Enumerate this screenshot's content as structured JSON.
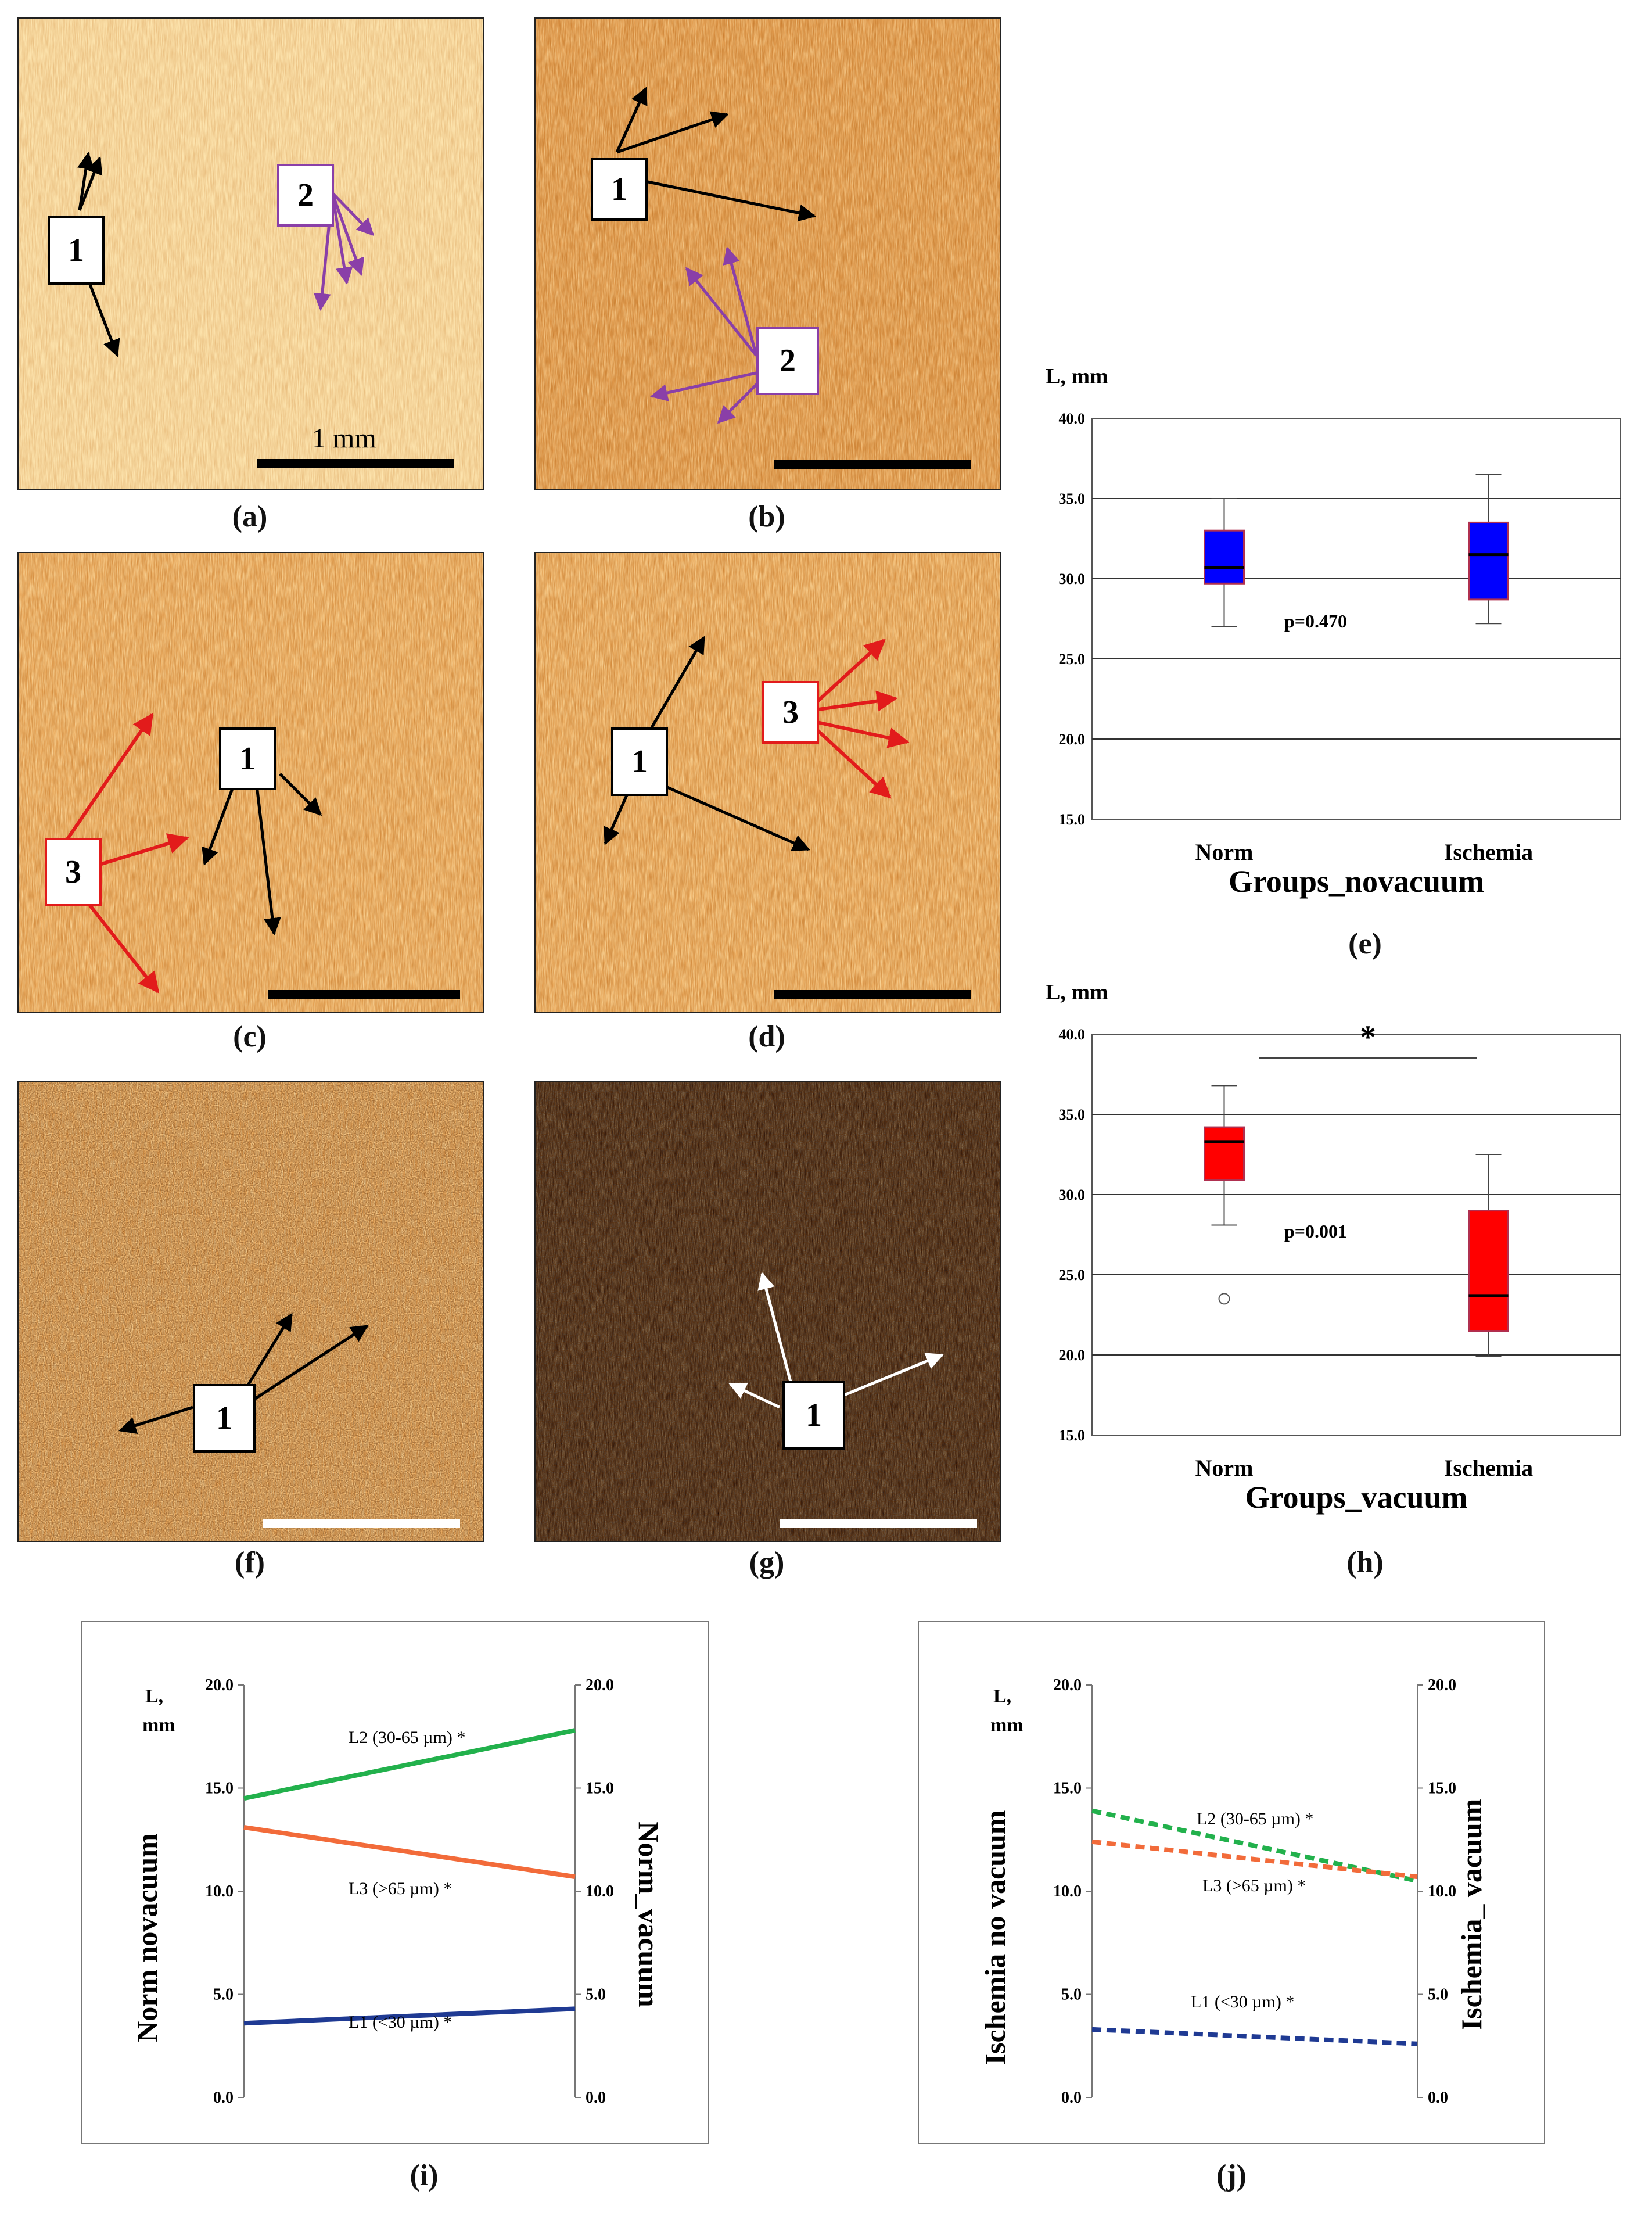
{
  "panels": {
    "a": {
      "caption": "(a)",
      "labels": [
        "1",
        "2"
      ],
      "scale_text": "1 mm"
    },
    "b": {
      "caption": "(b)",
      "labels": [
        "1",
        "2"
      ]
    },
    "c": {
      "caption": "(c)",
      "labels": [
        "1",
        "3"
      ]
    },
    "d": {
      "caption": "(d)",
      "labels": [
        "1",
        "3"
      ]
    },
    "e": {
      "caption": "(e)"
    },
    "f": {
      "caption": "(f)",
      "labels": [
        "1"
      ]
    },
    "g": {
      "caption": "(g)",
      "labels": [
        "1"
      ]
    },
    "h": {
      "caption": "(h)"
    },
    "i": {
      "caption": "(i)"
    },
    "j": {
      "caption": "(j)"
    }
  },
  "colors": {
    "box_blue": "#0000ff",
    "box_red": "#ff0000",
    "green": "#22b14c",
    "orange": "#f26b3a",
    "navy": "#1f3a93",
    "purple": "#8a3fa8",
    "red_arrow": "#e21b1b"
  },
  "chart_data": [
    {
      "id": "e",
      "type": "box",
      "ylabel": "L, mm",
      "xlabel": "Groups_novacuum",
      "categories": [
        "Norm",
        "Ischemia"
      ],
      "ylim": [
        15.0,
        40.0
      ],
      "yticks": [
        "40.0",
        "35.0",
        "30.0",
        "25.0",
        "20.0",
        "15.0"
      ],
      "boxes": [
        {
          "category": "Norm",
          "min": 27.0,
          "q1": 29.7,
          "median": 30.7,
          "q3": 33.0,
          "max": 35.0,
          "color": "#0000ff"
        },
        {
          "category": "Ischemia",
          "min": 27.2,
          "q1": 28.7,
          "median": 31.5,
          "q3": 33.5,
          "max": 36.5,
          "color": "#0000ff"
        }
      ],
      "annotation": "p=0.470",
      "grid": true
    },
    {
      "id": "h",
      "type": "box",
      "ylabel": "L, mm",
      "xlabel": "Groups_vacuum",
      "categories": [
        "Norm",
        "Ischemia"
      ],
      "ylim": [
        15.0,
        40.0
      ],
      "yticks": [
        "40.0",
        "35.0",
        "30.0",
        "25.0",
        "20.0",
        "15.0"
      ],
      "boxes": [
        {
          "category": "Norm",
          "min": 28.1,
          "q1": 30.9,
          "median": 33.3,
          "q3": 34.2,
          "max": 36.8,
          "outliers": [
            23.5
          ],
          "color": "#ff0000"
        },
        {
          "category": "Ischemia",
          "min": 19.9,
          "q1": 21.5,
          "median": 23.7,
          "q3": 29.0,
          "max": 32.5,
          "color": "#ff0000"
        }
      ],
      "annotation": "p=0.001",
      "significance": "*",
      "grid": true
    },
    {
      "id": "i",
      "type": "line",
      "ylabel_left": "L,\nmm",
      "ylabel_left_axis": "Norm  novacuum",
      "ylabel_right_axis": "Norm_vacuum",
      "ylim": [
        0.0,
        20.0
      ],
      "yticks": [
        "20.0",
        "15.0",
        "10.0",
        "5.0",
        "0.0"
      ],
      "series": [
        {
          "name": "L2 (30-65 µm) *",
          "start": 14.5,
          "end": 17.8,
          "color": "#22b14c",
          "dashed": false
        },
        {
          "name": "L3 (>65 µm) *",
          "start": 13.1,
          "end": 10.7,
          "color": "#f26b3a",
          "dashed": false
        },
        {
          "name": "L1 (<30 µm) *",
          "start": 3.6,
          "end": 4.3,
          "color": "#1f3a93",
          "dashed": false
        }
      ]
    },
    {
      "id": "j",
      "type": "line",
      "ylabel_left": "L,\nmm",
      "ylabel_left_axis": "Ischemia  no vacuum",
      "ylabel_right_axis": "Ischemia_ vacuum",
      "ylim": [
        0.0,
        20.0
      ],
      "yticks": [
        "20.0",
        "15.0",
        "10.0",
        "5.0",
        "0.0"
      ],
      "series": [
        {
          "name": "L2 (30-65 µm) *",
          "start": 13.9,
          "end": 10.5,
          "color": "#22b14c",
          "dashed": true
        },
        {
          "name": "L3 (>65 µm) *",
          "start": 12.4,
          "end": 10.7,
          "color": "#f26b3a",
          "dashed": true
        },
        {
          "name": "L1 (<30 µm) *",
          "start": 3.3,
          "end": 2.6,
          "color": "#1f3a93",
          "dashed": true
        }
      ]
    }
  ]
}
